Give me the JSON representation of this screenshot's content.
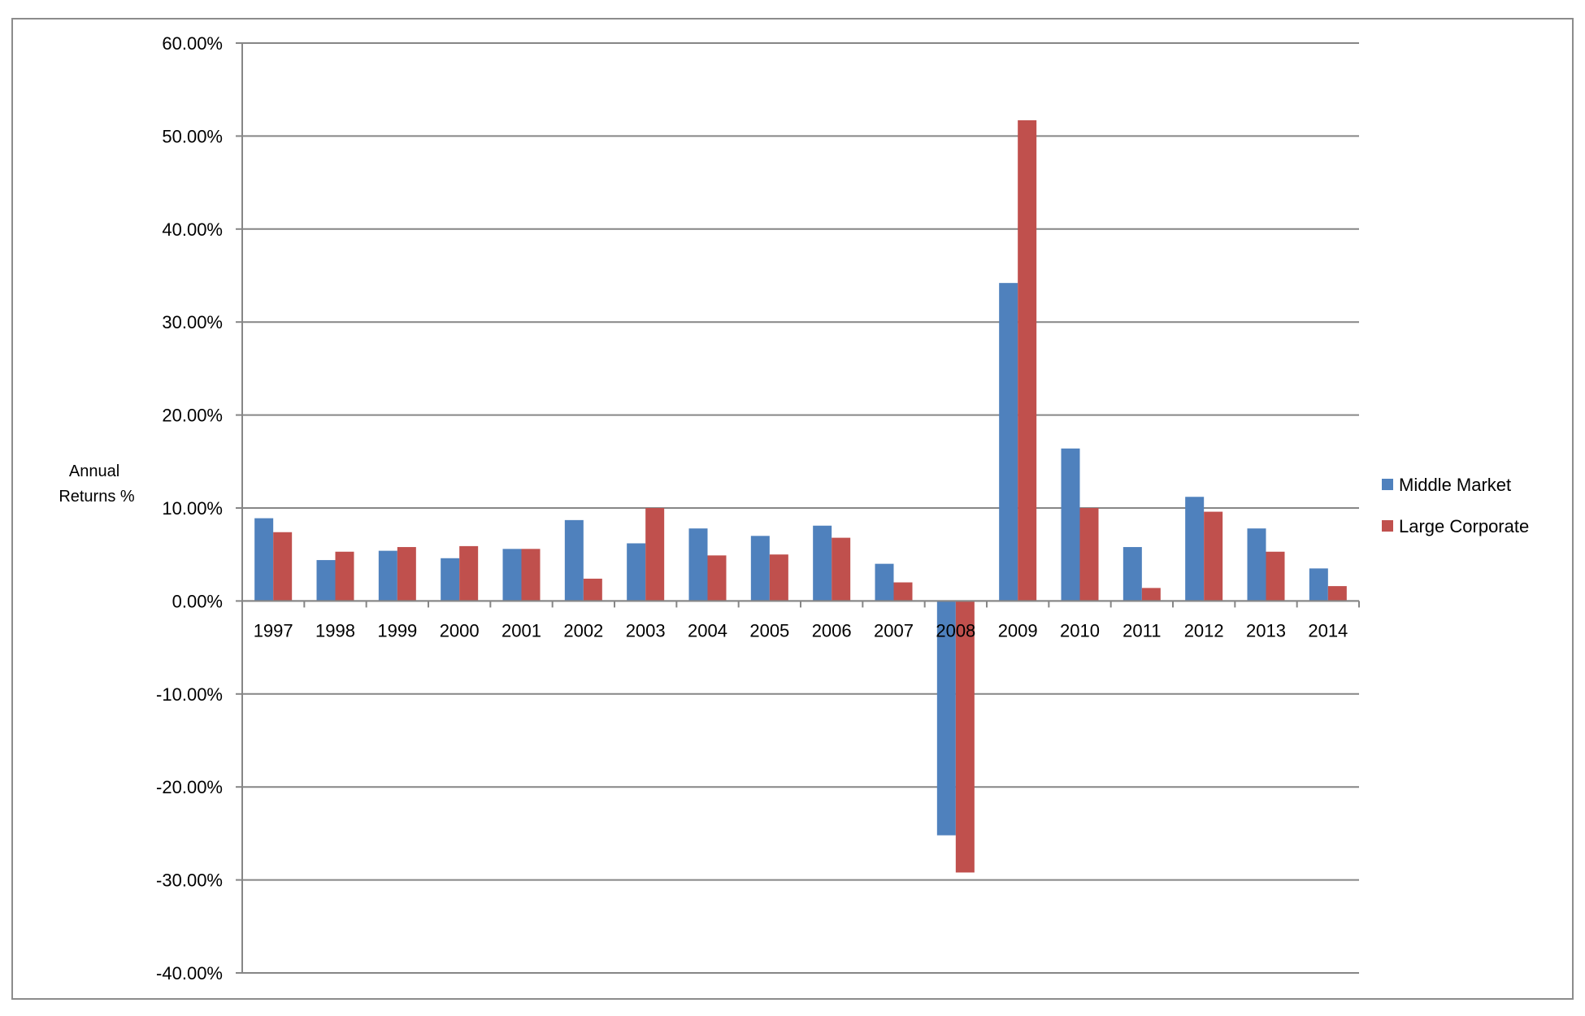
{
  "chart_data": {
    "type": "bar",
    "title": "",
    "xlabel": "",
    "ylabel_lines": [
      "Annual",
      "Returns %"
    ],
    "categories": [
      "1997",
      "1998",
      "1999",
      "2000",
      "2001",
      "2002",
      "2003",
      "2004",
      "2005",
      "2006",
      "2007",
      "2008",
      "2009",
      "2010",
      "2011",
      "2012",
      "2013",
      "2014"
    ],
    "series": [
      {
        "name": "Middle Market",
        "color": "#4f81bd",
        "values": [
          8.9,
          4.4,
          5.4,
          4.6,
          5.6,
          8.7,
          6.2,
          7.8,
          7.0,
          8.1,
          4.0,
          -25.2,
          34.2,
          16.4,
          5.8,
          11.2,
          7.8,
          3.5
        ]
      },
      {
        "name": "Large Corporate",
        "color": "#c0504d",
        "values": [
          7.4,
          5.3,
          5.8,
          5.9,
          5.6,
          2.4,
          10.0,
          4.9,
          5.0,
          6.8,
          2.0,
          -29.2,
          51.7,
          10.0,
          1.4,
          9.6,
          5.3,
          1.6
        ]
      }
    ],
    "ylim": [
      -40,
      60
    ],
    "y_ticks": [
      60,
      50,
      40,
      30,
      20,
      10,
      0,
      -10,
      -20,
      -30,
      -40
    ],
    "y_tick_labels": [
      "60.00%",
      "50.00%",
      "40.00%",
      "30.00%",
      "20.00%",
      "10.00%",
      "0.00%",
      "-10.00%",
      "-20.00%",
      "-30.00%",
      "-40.00%"
    ],
    "grid": true,
    "legend_position": "right",
    "colors": {
      "grid": "#868686",
      "axis": "#868686",
      "frame": "#8c8c8c"
    }
  }
}
